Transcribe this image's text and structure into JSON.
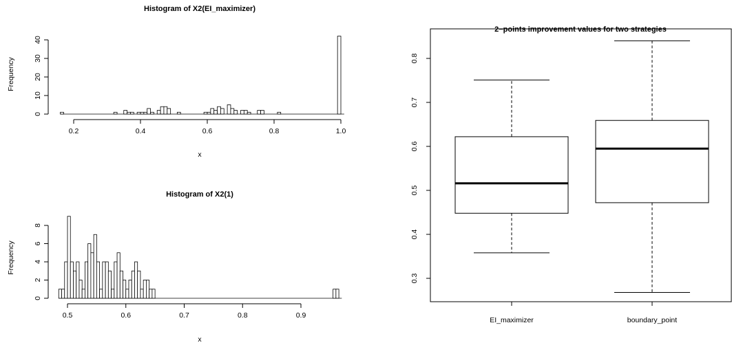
{
  "chart_data": [
    {
      "type": "bar",
      "title": "Histogram of X2(EI_maximizer)",
      "xlabel": "x",
      "ylabel": "Frequency",
      "xlim": [
        0.16,
        1.0
      ],
      "ylim": [
        0,
        42
      ],
      "x_ticks": [
        "0.2",
        "0.4",
        "0.6",
        "0.8",
        "1.0"
      ],
      "y_ticks": [
        "0",
        "10",
        "20",
        "30",
        "40"
      ],
      "bin_width": 0.01,
      "bins": [
        {
          "x": 0.16,
          "value": 1
        },
        {
          "x": 0.32,
          "value": 1
        },
        {
          "x": 0.35,
          "value": 2
        },
        {
          "x": 0.36,
          "value": 1
        },
        {
          "x": 0.37,
          "value": 1
        },
        {
          "x": 0.39,
          "value": 1
        },
        {
          "x": 0.4,
          "value": 1
        },
        {
          "x": 0.41,
          "value": 1
        },
        {
          "x": 0.42,
          "value": 3
        },
        {
          "x": 0.43,
          "value": 1
        },
        {
          "x": 0.45,
          "value": 2
        },
        {
          "x": 0.46,
          "value": 4
        },
        {
          "x": 0.47,
          "value": 4
        },
        {
          "x": 0.48,
          "value": 3
        },
        {
          "x": 0.51,
          "value": 1
        },
        {
          "x": 0.59,
          "value": 1
        },
        {
          "x": 0.6,
          "value": 1
        },
        {
          "x": 0.61,
          "value": 3
        },
        {
          "x": 0.62,
          "value": 2
        },
        {
          "x": 0.63,
          "value": 4
        },
        {
          "x": 0.64,
          "value": 3
        },
        {
          "x": 0.66,
          "value": 5
        },
        {
          "x": 0.67,
          "value": 3
        },
        {
          "x": 0.68,
          "value": 2
        },
        {
          "x": 0.7,
          "value": 2
        },
        {
          "x": 0.71,
          "value": 2
        },
        {
          "x": 0.72,
          "value": 1
        },
        {
          "x": 0.75,
          "value": 2
        },
        {
          "x": 0.76,
          "value": 2
        },
        {
          "x": 0.81,
          "value": 1
        },
        {
          "x": 0.99,
          "value": 42
        }
      ]
    },
    {
      "type": "bar",
      "title": "Histogram of X2(1)",
      "xlabel": "x",
      "ylabel": "Frequency",
      "xlim": [
        0.485,
        0.965
      ],
      "ylim": [
        0,
        9
      ],
      "x_ticks": [
        "0.5",
        "0.6",
        "0.7",
        "0.8",
        "0.9"
      ],
      "y_ticks": [
        "0",
        "2",
        "4",
        "6",
        "8"
      ],
      "bin_width": 0.005,
      "bins": [
        {
          "x": 0.485,
          "value": 1
        },
        {
          "x": 0.49,
          "value": 1
        },
        {
          "x": 0.495,
          "value": 4
        },
        {
          "x": 0.5,
          "value": 9
        },
        {
          "x": 0.505,
          "value": 4
        },
        {
          "x": 0.51,
          "value": 3
        },
        {
          "x": 0.515,
          "value": 4
        },
        {
          "x": 0.52,
          "value": 2
        },
        {
          "x": 0.525,
          "value": 1
        },
        {
          "x": 0.53,
          "value": 4
        },
        {
          "x": 0.535,
          "value": 6
        },
        {
          "x": 0.54,
          "value": 5
        },
        {
          "x": 0.545,
          "value": 7
        },
        {
          "x": 0.55,
          "value": 4
        },
        {
          "x": 0.555,
          "value": 1
        },
        {
          "x": 0.56,
          "value": 4
        },
        {
          "x": 0.565,
          "value": 4
        },
        {
          "x": 0.57,
          "value": 3
        },
        {
          "x": 0.575,
          "value": 1
        },
        {
          "x": 0.58,
          "value": 4
        },
        {
          "x": 0.585,
          "value": 5
        },
        {
          "x": 0.59,
          "value": 3
        },
        {
          "x": 0.595,
          "value": 2
        },
        {
          "x": 0.6,
          "value": 1
        },
        {
          "x": 0.605,
          "value": 2
        },
        {
          "x": 0.61,
          "value": 3
        },
        {
          "x": 0.615,
          "value": 4
        },
        {
          "x": 0.62,
          "value": 3
        },
        {
          "x": 0.625,
          "value": 1
        },
        {
          "x": 0.63,
          "value": 2
        },
        {
          "x": 0.635,
          "value": 2
        },
        {
          "x": 0.64,
          "value": 1
        },
        {
          "x": 0.645,
          "value": 1
        },
        {
          "x": 0.955,
          "value": 1
        },
        {
          "x": 0.96,
          "value": 1
        }
      ]
    },
    {
      "type": "box",
      "title": "2−points improvement values for two strategies",
      "ylim": [
        0.25,
        0.86
      ],
      "y_ticks": [
        "0.3",
        "0.4",
        "0.5",
        "0.6",
        "0.7",
        "0.8"
      ],
      "categories": [
        "EI_maximizer",
        "boundary_point"
      ],
      "boxes": [
        {
          "name": "EI_maximizer",
          "min": 0.358,
          "q1": 0.448,
          "median": 0.516,
          "q3": 0.622,
          "max": 0.751
        },
        {
          "name": "boundary_point",
          "min": 0.268,
          "q1": 0.472,
          "median": 0.595,
          "q3": 0.659,
          "max": 0.84
        }
      ]
    }
  ]
}
